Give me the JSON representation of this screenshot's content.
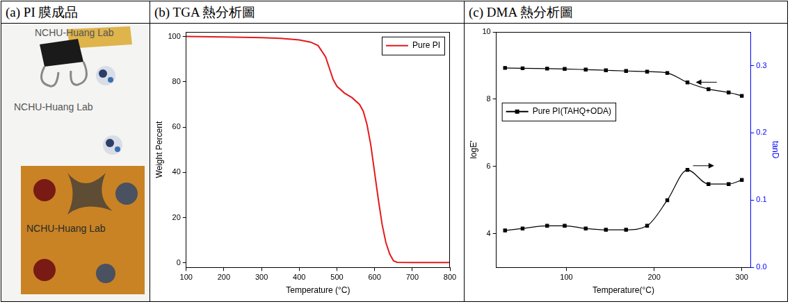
{
  "photo": {
    "title": "(a) PI 膜成品",
    "labels": [
      "NCHU-Huang Lab",
      "NCHU-Huang Lab",
      "NCHU-Huang Lab"
    ]
  },
  "chart_data": [
    {
      "type": "line",
      "title": "(b) TGA 熱分析圖",
      "x_label": "Temperature (°C)",
      "y_label": "Weight Percent",
      "x": [
        100,
        200,
        300,
        350,
        400,
        430,
        450,
        470,
        480,
        490,
        500,
        520,
        540,
        560,
        570,
        580,
        590,
        600,
        610,
        620,
        630,
        640,
        650,
        660,
        700,
        800
      ],
      "series": [
        {
          "name": "Pure PI",
          "color": "#e31a1c",
          "values": [
            100,
            99.8,
            99.5,
            99.2,
            98.5,
            97.5,
            96,
            91,
            86,
            81,
            78,
            75,
            73,
            70,
            67,
            61,
            52,
            40,
            28,
            17,
            9,
            4,
            1,
            0.3,
            0.2,
            0.2
          ]
        }
      ],
      "xlim": [
        100,
        800
      ],
      "xticks": [
        100,
        200,
        300,
        400,
        500,
        600,
        700,
        800
      ],
      "ylim": [
        -2,
        102
      ],
      "yticks": [
        0,
        20,
        40,
        60,
        80,
        100
      ],
      "legend": "upper right",
      "grid": false
    },
    {
      "type": "line",
      "title": "(c) DMA 熱分析圖",
      "x_label": "Temperature(°C)",
      "y_label": "logE'",
      "y2_label": "tanD",
      "x": [
        30,
        50,
        78,
        98,
        122,
        145,
        168,
        192,
        215,
        238,
        262,
        285,
        300
      ],
      "series": [
        {
          "name": "Pure PI(TAHQ+ODA)",
          "color": "#000000",
          "marker": "square",
          "values": [
            8.93,
            8.92,
            8.91,
            8.9,
            8.88,
            8.86,
            8.84,
            8.82,
            8.78,
            8.5,
            8.3,
            8.2,
            8.1
          ]
        },
        {
          "color": "#000000",
          "marker": "square",
          "axis": "y2",
          "values": [
            0.055,
            0.058,
            0.062,
            0.062,
            0.058,
            0.056,
            0.056,
            0.062,
            0.1,
            0.145,
            0.124,
            0.124,
            0.13
          ]
        }
      ],
      "xlim": [
        20,
        310
      ],
      "xticks": [
        100,
        200,
        300
      ],
      "ylim": [
        3,
        10
      ],
      "yticks": [
        4,
        6,
        8,
        10
      ],
      "y2lim": [
        0,
        0.35
      ],
      "y2ticks": [
        {
          "value": 0,
          "label": "0.0"
        },
        0.1,
        0.2,
        0.3
      ],
      "legend": "upper left",
      "grid": false
    }
  ]
}
